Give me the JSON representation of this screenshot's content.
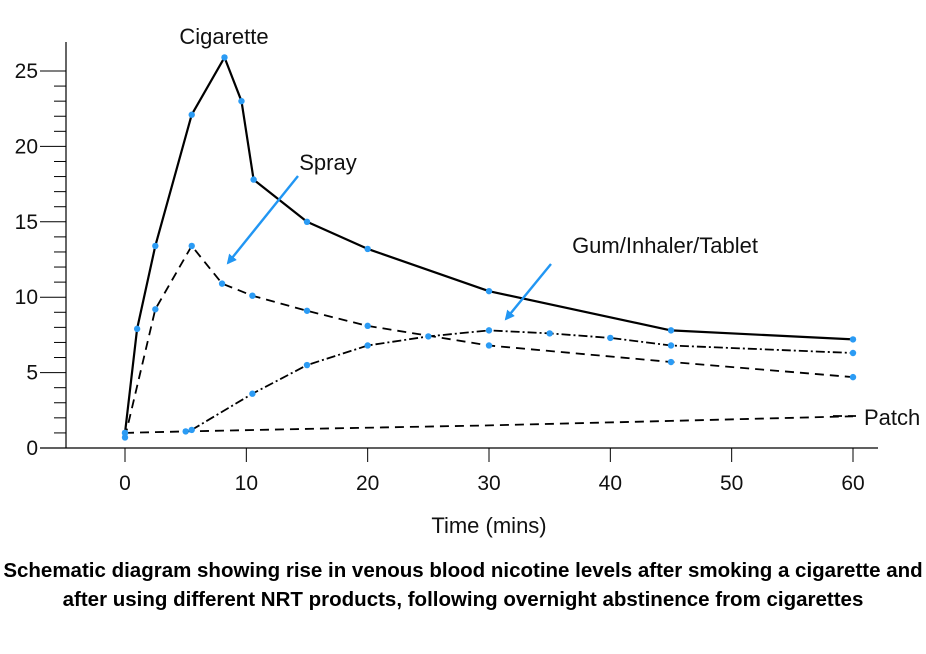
{
  "chart_data": {
    "type": "line",
    "xlabel": "Time (mins)",
    "ylabel": "",
    "xlim": [
      0,
      60
    ],
    "ylim": [
      0,
      25
    ],
    "x_ticks": [
      0,
      10,
      20,
      30,
      40,
      50,
      60
    ],
    "y_ticks": [
      0,
      5,
      10,
      15,
      20,
      25
    ],
    "grid": false,
    "series": [
      {
        "name": "Cigarette",
        "style": "solid",
        "x": [
          0,
          1,
          2.5,
          5.5,
          8.2,
          9.6,
          10.6,
          15,
          20,
          30,
          45,
          60
        ],
        "y": [
          1.0,
          7.9,
          13.4,
          22.1,
          25.9,
          23.0,
          17.8,
          15.0,
          13.2,
          10.4,
          7.8,
          7.2
        ]
      },
      {
        "name": "Spray",
        "style": "dashed",
        "x": [
          0,
          2.5,
          5.5,
          8,
          10.5,
          15,
          20,
          30,
          45,
          60
        ],
        "y": [
          0.7,
          9.2,
          13.4,
          10.9,
          10.1,
          9.1,
          8.1,
          6.8,
          5.7,
          4.7
        ]
      },
      {
        "name": "Gum/Inhaler/Tablet",
        "style": "dash-dot",
        "x": [
          5.5,
          10.5,
          15,
          20,
          25,
          30,
          35,
          40,
          45,
          60
        ],
        "y": [
          1.2,
          3.6,
          5.5,
          6.8,
          7.4,
          7.8,
          7.6,
          7.3,
          6.8,
          6.3
        ]
      },
      {
        "name": "Patch",
        "style": "dashed",
        "x": [
          0,
          5,
          17,
          30,
          45,
          60
        ],
        "y": [
          1.0,
          1.1,
          1.3,
          1.5,
          1.8,
          2.1
        ]
      }
    ],
    "annotations": [
      {
        "text": "Cigarette",
        "target_series": "Cigarette"
      },
      {
        "text": "Spray",
        "target_series": "Spray",
        "arrow": true
      },
      {
        "text": "Gum/Inhaler/Tablet",
        "target_series": "Gum/Inhaler/Tablet",
        "arrow": true
      },
      {
        "text": "Patch",
        "target_series": "Patch"
      }
    ],
    "colors": {
      "line": "#000000",
      "marker": "#2b9bf4",
      "arrow": "#2196f3"
    }
  },
  "caption": "Schematic diagram showing rise in venous blood nicotine levels after smoking a cigarette and after using different NRT products, following overnight abstinence from cigarettes"
}
